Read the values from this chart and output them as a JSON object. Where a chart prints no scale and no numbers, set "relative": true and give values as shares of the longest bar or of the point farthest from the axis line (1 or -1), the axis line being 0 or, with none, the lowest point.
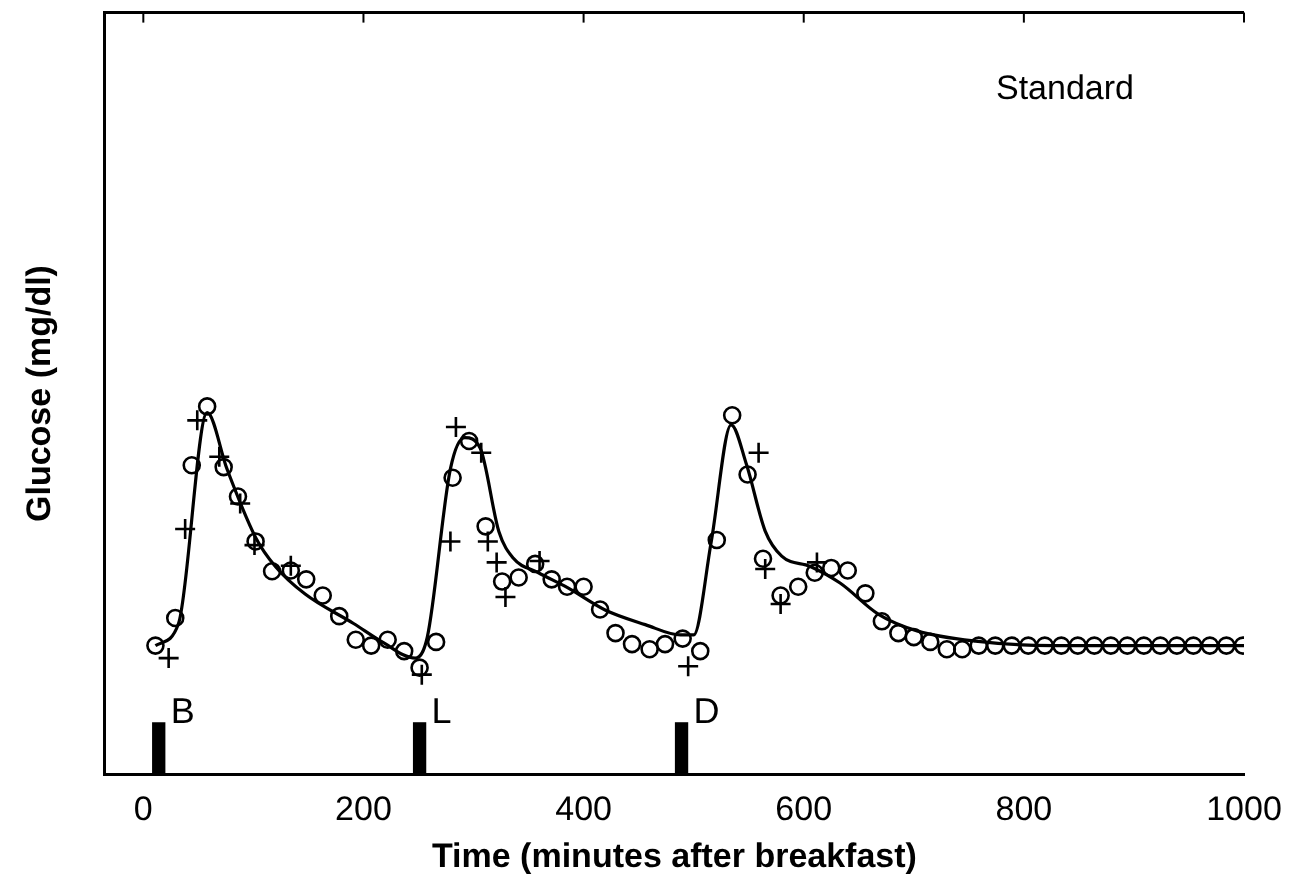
{
  "chart_data": {
    "type": "scatter",
    "relative": true,
    "xlabel": "Time (minutes after breakfast)",
    "ylabel": "Glucose (mg/dl)",
    "xlim": [
      -35,
      1000
    ],
    "xticks": [
      0,
      200,
      400,
      600,
      800,
      1000
    ],
    "tick_labels": "x",
    "grid": false,
    "legend": false,
    "annotations": [
      "Standard",
      {
        "text": "B",
        "x": 14,
        "y": 0.14
      },
      {
        "text": "L",
        "x": 251,
        "y": 0.14
      },
      {
        "text": "D",
        "x": 489,
        "y": 0.14
      }
    ],
    "series": [
      {
        "type": "bar",
        "color": "#000000",
        "x": [
          14,
          251,
          489
        ],
        "values": [
          0.14,
          0.14,
          0.14
        ]
      },
      {
        "type": "line",
        "color": "#000000",
        "marker": "none",
        "line_style": "solid",
        "x": [
          11,
          32,
          58,
          76,
          102,
          120,
          147,
          191,
          217,
          247,
          258,
          279,
          292,
          306,
          323,
          336,
          359,
          385,
          420,
          456,
          488,
          500,
          516,
          534,
          548,
          565,
          580,
          606,
          633,
          668,
          703,
          756,
          827,
          1000
        ],
        "values": [
          0.35,
          0.41,
          0.983,
          0.83,
          0.644,
          0.565,
          0.49,
          0.41,
          0.36,
          0.316,
          0.373,
          0.83,
          0.915,
          0.887,
          0.66,
          0.588,
          0.548,
          0.508,
          0.446,
          0.407,
          0.379,
          0.379,
          0.633,
          0.95,
          0.842,
          0.661,
          0.593,
          0.565,
          0.52,
          0.435,
          0.39,
          0.362,
          0.35,
          0.35
        ]
      },
      {
        "color": "#000000",
        "marker": "circle",
        "x": [
          11,
          29,
          44,
          58,
          73,
          86,
          102,
          117,
          134,
          148,
          163,
          178,
          193,
          207,
          222,
          237,
          251,
          266,
          281,
          296,
          311,
          326,
          341,
          356,
          371,
          385,
          400,
          415,
          429,
          444,
          460,
          474,
          490,
          506,
          521,
          535,
          549,
          563,
          579,
          595,
          610,
          625,
          640,
          656,
          671,
          686,
          700,
          715,
          730,
          744,
          759,
          774,
          789,
          804,
          819,
          834,
          849,
          864,
          879,
          894,
          909,
          924,
          939,
          954,
          969,
          984,
          999
        ],
        "values": [
          0.35,
          0.425,
          0.84,
          1.0,
          0.835,
          0.755,
          0.633,
          0.552,
          0.554,
          0.53,
          0.486,
          0.43,
          0.366,
          0.35,
          0.366,
          0.335,
          0.29,
          0.36,
          0.806,
          0.906,
          0.674,
          0.524,
          0.535,
          0.572,
          0.53,
          0.51,
          0.51,
          0.448,
          0.384,
          0.354,
          0.34,
          0.354,
          0.369,
          0.335,
          0.637,
          0.976,
          0.815,
          0.586,
          0.486,
          0.51,
          0.548,
          0.561,
          0.554,
          0.492,
          0.416,
          0.384,
          0.373,
          0.36,
          0.34,
          0.34,
          0.35,
          0.35,
          0.35,
          0.35,
          0.35,
          0.35,
          0.35,
          0.35,
          0.35,
          0.35,
          0.35,
          0.35,
          0.35,
          0.35,
          0.35,
          0.35,
          0.35
        ]
      },
      {
        "color": "#000000",
        "marker": "cross",
        "x": [
          23,
          38,
          49,
          69,
          88,
          101,
          134,
          253,
          279,
          284,
          307,
          313,
          321,
          329,
          360,
          495,
          559,
          565,
          579,
          612
        ],
        "values": [
          0.316,
          0.667,
          0.962,
          0.863,
          0.736,
          0.623,
          0.567,
          0.271,
          0.633,
          0.944,
          0.874,
          0.633,
          0.576,
          0.482,
          0.58,
          0.294,
          0.874,
          0.558,
          0.463,
          0.576
        ]
      }
    ]
  }
}
